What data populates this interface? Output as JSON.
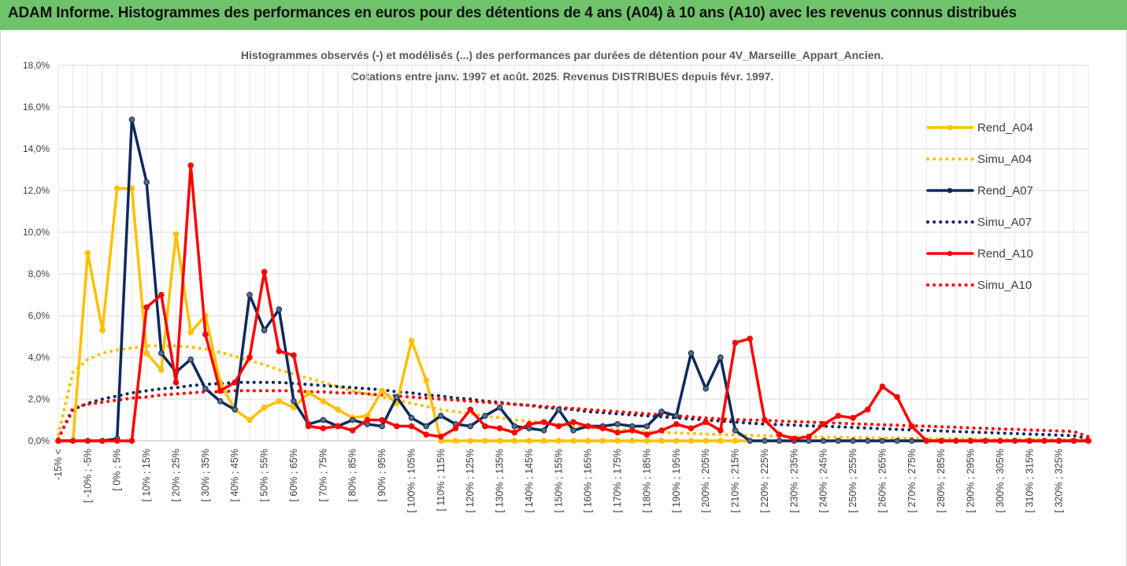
{
  "banner": {
    "title": "ADAM Informe. Histogrammes des performances en euros pour des détentions de 4 ans (A04) à 10 ans (A10) avec les revenus connus distribués"
  },
  "chart_data": {
    "type": "line",
    "subtitle_lines": [
      "Histogrammes observés (-) et modélisés (...) des performances par durées de détention pour 4V_Marseille_Appart_Ancien.",
      "Cotations entre janv. 1997 et août. 2025. Revenus DISTRIBUES depuis févr. 1997."
    ],
    "ylim": [
      0,
      18
    ],
    "y_ticks": [
      "0,0%",
      "2,0%",
      "4,0%",
      "6,0%",
      "8,0%",
      "10,0%",
      "12,0%",
      "14,0%",
      "16,0%",
      "18,0%"
    ],
    "grid": true,
    "legend_position": "right",
    "x_labels": [
      "-15% <",
      "[ -10% ; -5%",
      "[ 0% ; 5%",
      "[ 10% ; 15%",
      "[ 20% ; 25%",
      "[ 30% ; 35%",
      "[ 40% ; 45%",
      "[ 50% ; 55%",
      "[ 60% ; 65%",
      "[ 70% ; 75%",
      "[ 80% ; 85%",
      "[ 90% ; 95%",
      "[ 100% ; 105%",
      "[ 110% ; 115%",
      "[ 120% ; 125%",
      "[ 130% ; 135%",
      "[ 140% ; 145%",
      "[ 150% ; 155%",
      "[ 160% ; 165%",
      "[ 170% ; 175%",
      "[ 180% ; 185%",
      "[ 190% ; 195%",
      "[ 200% ; 205%",
      "[ 210% ; 215%",
      "[ 220% ; 225%",
      "[ 230% ; 235%",
      "[ 240% ; 245%",
      "[ 250% ; 255%",
      "[ 260% ; 265%",
      "[ 270% ; 275%",
      "[ 280% ; 285%",
      "[ 290% ; 295%",
      "[ 300% ; 305%",
      "[ 310% ; 315%",
      "[ 320% ; 325%"
    ],
    "series": [
      {
        "name": "Rend_A04",
        "color": "#ffc000",
        "style": "solid",
        "markers": true,
        "values": [
          0.0,
          0.0,
          9.0,
          5.3,
          12.1,
          12.1,
          4.2,
          3.4,
          9.9,
          5.2,
          6.0,
          2.8,
          1.5,
          1.0,
          1.6,
          1.9,
          1.6,
          2.3,
          1.9,
          1.5,
          1.1,
          1.2,
          2.4,
          1.8,
          4.8,
          2.9,
          0.0,
          0.0,
          0.0,
          0.0,
          0.0,
          0.0,
          0.0,
          0.0,
          0.0,
          0.0,
          0.0,
          0.0,
          0.0,
          0.0,
          0.0,
          0.0,
          0.0,
          0.0,
          0.0,
          0.0,
          0.0,
          0.0,
          0.0,
          0.0,
          0.0,
          0.0,
          0.0,
          0.0,
          0.0,
          0.0,
          0.0,
          0.0,
          0.0,
          0.0,
          0.0,
          0.0,
          0.0,
          0.0,
          0.0,
          0.0,
          0.0,
          0.0,
          0.0,
          0.0,
          0.0
        ]
      },
      {
        "name": "Simu_A04",
        "color": "#ffc000",
        "style": "dotted",
        "markers": false,
        "values": [
          0.3,
          3.3,
          3.9,
          4.2,
          4.35,
          4.45,
          4.55,
          4.55,
          4.55,
          4.5,
          4.4,
          4.25,
          4.05,
          3.85,
          3.65,
          3.4,
          3.2,
          3.0,
          2.8,
          2.6,
          2.4,
          2.25,
          2.1,
          1.95,
          1.8,
          1.65,
          1.5,
          1.4,
          1.3,
          1.2,
          1.1,
          1.0,
          0.95,
          0.85,
          0.8,
          0.7,
          0.65,
          0.6,
          0.55,
          0.5,
          0.45,
          0.4,
          0.38,
          0.35,
          0.32,
          0.3,
          0.28,
          0.26,
          0.24,
          0.22,
          0.2,
          0.19,
          0.18,
          0.17,
          0.16,
          0.15,
          0.14,
          0.13,
          0.12,
          0.11,
          0.1,
          0.09,
          0.09,
          0.08,
          0.08,
          0.07,
          0.07,
          0.06,
          0.06,
          0.05,
          0.05
        ]
      },
      {
        "name": "Rend_A07",
        "color": "#0e2a5c",
        "style": "solid",
        "markers": true,
        "values": [
          0.0,
          0.0,
          0.0,
          0.0,
          0.1,
          15.4,
          12.4,
          4.2,
          3.3,
          3.9,
          2.5,
          1.9,
          1.5,
          7.0,
          5.3,
          6.3,
          1.9,
          0.8,
          1.0,
          0.7,
          1.0,
          0.8,
          0.7,
          2.1,
          1.1,
          0.7,
          1.2,
          0.8,
          0.7,
          1.2,
          1.6,
          0.7,
          0.6,
          0.5,
          1.5,
          0.5,
          0.7,
          0.7,
          0.8,
          0.7,
          0.7,
          1.4,
          1.2,
          4.2,
          2.5,
          4.0,
          0.5,
          0.0,
          0.0,
          0.0,
          0.0,
          0.0,
          0.0,
          0.0,
          0.0,
          0.0,
          0.0,
          0.0,
          0.0,
          0.0,
          0.0,
          0.0,
          0.0,
          0.0,
          0.0,
          0.0,
          0.0,
          0.0,
          0.0,
          0.0,
          0.0
        ]
      },
      {
        "name": "Simu_A07",
        "color": "#0e2a5c",
        "style": "dotted",
        "markers": false,
        "values": [
          0.1,
          1.5,
          1.8,
          2.0,
          2.15,
          2.3,
          2.4,
          2.5,
          2.55,
          2.65,
          2.7,
          2.75,
          2.8,
          2.8,
          2.8,
          2.8,
          2.75,
          2.7,
          2.65,
          2.6,
          2.55,
          2.5,
          2.45,
          2.35,
          2.3,
          2.2,
          2.15,
          2.05,
          2.0,
          1.9,
          1.85,
          1.75,
          1.7,
          1.6,
          1.55,
          1.5,
          1.4,
          1.35,
          1.3,
          1.25,
          1.2,
          1.15,
          1.1,
          1.05,
          1.0,
          0.95,
          0.9,
          0.85,
          0.8,
          0.78,
          0.75,
          0.72,
          0.7,
          0.67,
          0.64,
          0.61,
          0.58,
          0.55,
          0.52,
          0.5,
          0.47,
          0.45,
          0.42,
          0.4,
          0.37,
          0.35,
          0.32,
          0.3,
          0.27,
          0.25,
          0.1
        ]
      },
      {
        "name": "Rend_A10",
        "color": "#ff0000",
        "style": "solid",
        "markers": true,
        "values": [
          0.0,
          0.0,
          0.0,
          0.0,
          0.0,
          0.0,
          6.4,
          7.0,
          2.8,
          13.2,
          5.1,
          2.4,
          2.8,
          4.0,
          8.1,
          4.3,
          4.1,
          0.7,
          0.6,
          0.7,
          0.5,
          1.0,
          1.0,
          0.7,
          0.7,
          0.3,
          0.2,
          0.6,
          1.5,
          0.7,
          0.6,
          0.4,
          0.8,
          0.9,
          0.7,
          0.9,
          0.7,
          0.6,
          0.4,
          0.5,
          0.3,
          0.5,
          0.8,
          0.6,
          0.9,
          0.5,
          4.7,
          4.9,
          1.0,
          0.3,
          0.1,
          0.2,
          0.8,
          1.2,
          1.1,
          1.5,
          2.6,
          2.1,
          0.7,
          0.0,
          0.0,
          0.0,
          0.0,
          0.0,
          0.0,
          0.0,
          0.0,
          0.0,
          0.0,
          0.0,
          0.0
        ]
      },
      {
        "name": "Simu_A10",
        "color": "#ff0000",
        "style": "dotted",
        "markers": false,
        "values": [
          0.1,
          1.6,
          1.75,
          1.85,
          1.95,
          2.05,
          2.1,
          2.2,
          2.25,
          2.3,
          2.35,
          2.35,
          2.4,
          2.4,
          2.4,
          2.4,
          2.4,
          2.35,
          2.35,
          2.3,
          2.3,
          2.25,
          2.2,
          2.15,
          2.1,
          2.05,
          2.0,
          1.95,
          1.9,
          1.85,
          1.8,
          1.75,
          1.7,
          1.65,
          1.6,
          1.55,
          1.5,
          1.45,
          1.4,
          1.35,
          1.3,
          1.25,
          1.2,
          1.15,
          1.1,
          1.05,
          1.02,
          1.0,
          0.98,
          0.95,
          0.92,
          0.9,
          0.87,
          0.85,
          0.82,
          0.8,
          0.77,
          0.75,
          0.72,
          0.7,
          0.67,
          0.65,
          0.62,
          0.6,
          0.57,
          0.55,
          0.52,
          0.5,
          0.47,
          0.45,
          0.2
        ]
      }
    ]
  }
}
